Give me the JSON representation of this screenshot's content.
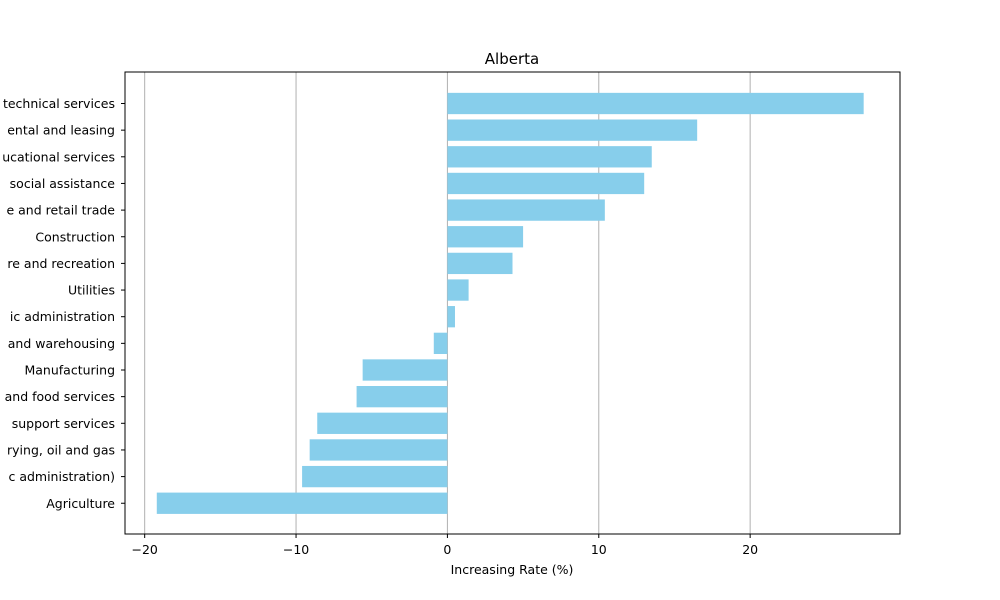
{
  "chart_data": {
    "type": "bar",
    "orientation": "horizontal",
    "title": "Alberta",
    "xlabel": "Increasing Rate (%)",
    "ylabel": "",
    "xlim": [
      -21.3,
      29.9
    ],
    "xticks": [
      -20,
      -10,
      0,
      10,
      20
    ],
    "xtick_labels": [
      "−20",
      "−10",
      "0",
      "10",
      "20"
    ],
    "grid": "vertical",
    "bar_color": "#87CEEB",
    "categories": [
      "technical services",
      "ental and leasing",
      "ucational services",
      "social assistance",
      "e and retail trade",
      "Construction",
      "re and recreation",
      "Utilities",
      "ic administration",
      "and warehousing",
      "Manufacturing",
      "and food services",
      "support services",
      "rying, oil and gas",
      "c administration)",
      "Agriculture"
    ],
    "values": [
      27.5,
      16.5,
      13.5,
      13.0,
      10.4,
      5.0,
      4.3,
      1.4,
      0.5,
      -0.9,
      -5.6,
      -6.0,
      -8.6,
      -9.1,
      -9.6,
      -19.2
    ]
  }
}
